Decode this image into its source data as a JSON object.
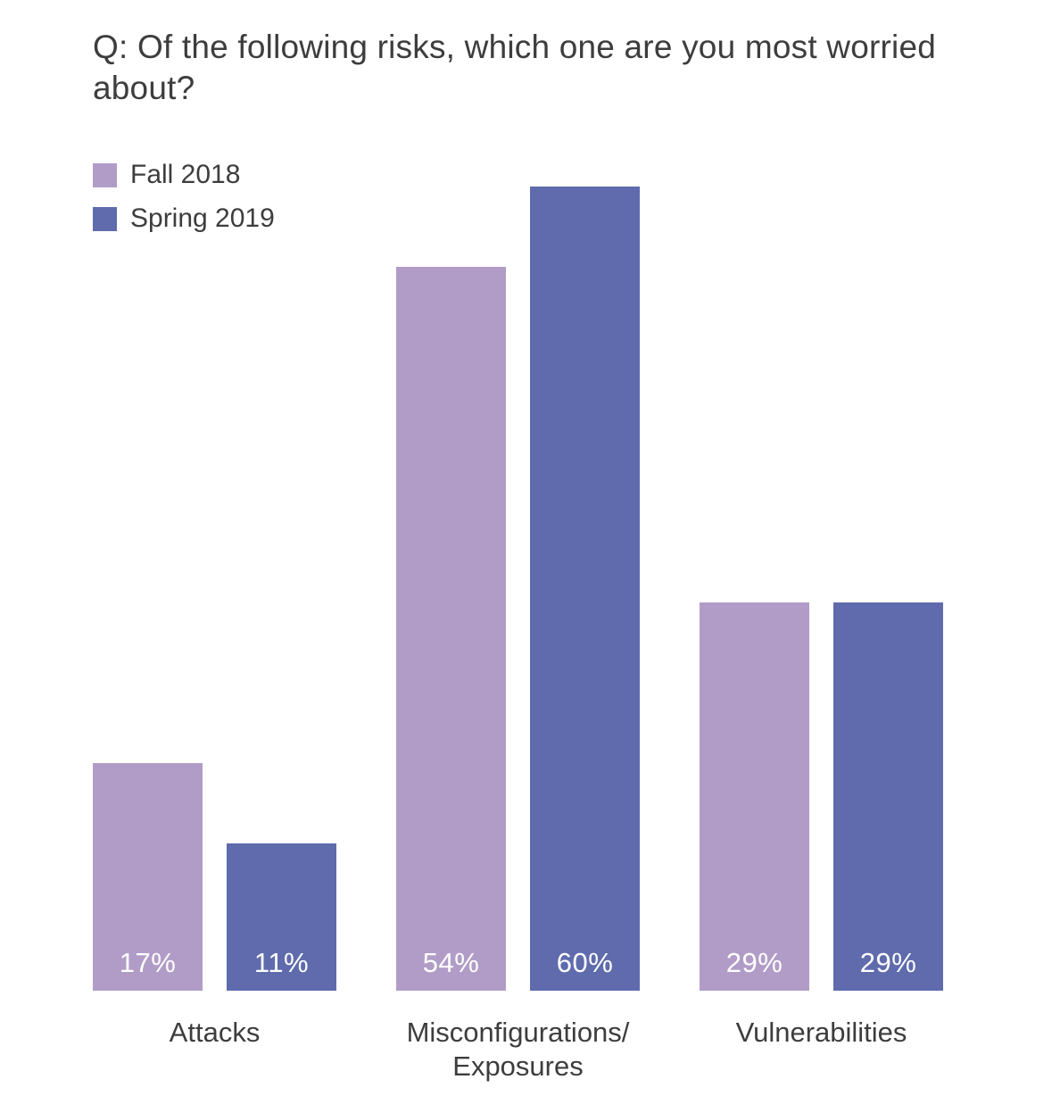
{
  "title": "Q: Of the following risks, which one are you most worried about?",
  "legend": [
    {
      "label": "Fall 2018",
      "color": "#b19cc7"
    },
    {
      "label": "Spring 2019",
      "color": "#5f6bac"
    }
  ],
  "colors": {
    "background": "#ffffff",
    "text": "#3d3d3d",
    "bar_value_text": "#ffffff",
    "series_fall_2018": "#b19cc7",
    "series_spring_2019": "#5f6bac"
  },
  "chart_data": {
    "type": "bar",
    "title": "Q: Of the following risks, which one are you most worried about?",
    "categories": [
      "Attacks",
      "Misconfigurations/Exposures",
      "Vulnerabilities"
    ],
    "series": [
      {
        "name": "Fall 2018",
        "color": "#b19cc7",
        "values": [
          17,
          54,
          29
        ]
      },
      {
        "name": "Spring 2019",
        "color": "#5f6bac",
        "values": [
          11,
          60,
          29
        ]
      }
    ],
    "value_suffix": "%",
    "xlabel": "",
    "ylabel": "",
    "ylim": [
      0,
      60
    ],
    "grid": false,
    "axes_visible": false,
    "legend_position": "top-left",
    "value_labels_position": "inside-bottom"
  }
}
